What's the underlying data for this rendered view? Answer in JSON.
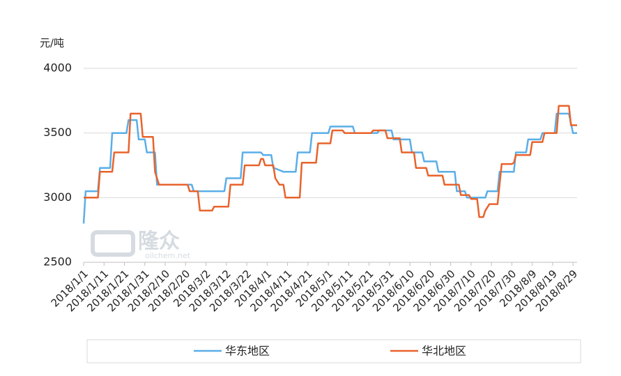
{
  "chart_data": {
    "type": "line",
    "y_label": "元/吨",
    "watermark": {
      "brand": "隆众",
      "site": "oilchem.net"
    },
    "xlim": [
      "2018/1/1",
      "2018/8/31"
    ],
    "xticks": [
      "2018/1/1",
      "2018/1/11",
      "2018/1/21",
      "2018/1/31",
      "2018/2/10",
      "2018/2/20",
      "2018/3/2",
      "2018/3/12",
      "2018/3/22",
      "2018/4/1",
      "2018/4/11",
      "2018/4/21",
      "2018/5/1",
      "2018/5/11",
      "2018/5/21",
      "2018/5/31",
      "2018/6/10",
      "2018/6/20",
      "2018/6/30",
      "2018/7/10",
      "2018/7/20",
      "2018/7/30",
      "2018/8/9",
      "2018/8/19",
      "2018/8/29"
    ],
    "ylim": [
      2500,
      4000
    ],
    "yticks": [
      2500,
      3000,
      3500,
      4000
    ],
    "grid": true,
    "series": [
      {
        "name": "华东地区",
        "color": "#5aaee8",
        "x": [
          "2018/1/1",
          "2018/1/2",
          "2018/1/8",
          "2018/1/9",
          "2018/1/14",
          "2018/1/15",
          "2018/1/22",
          "2018/1/23",
          "2018/1/27",
          "2018/1/28",
          "2018/1/31",
          "2018/2/1",
          "2018/2/5",
          "2018/2/6",
          "2018/2/23",
          "2018/2/24",
          "2018/3/11",
          "2018/3/12",
          "2018/3/19",
          "2018/3/20",
          "2018/3/29",
          "2018/3/30",
          "2018/4/3",
          "2018/4/4",
          "2018/4/6",
          "2018/4/9",
          "2018/4/15",
          "2018/4/16",
          "2018/4/22",
          "2018/4/23",
          "2018/5/1",
          "2018/5/2",
          "2018/5/13",
          "2018/5/14",
          "2018/5/25",
          "2018/5/26",
          "2018/6/1",
          "2018/6/2",
          "2018/6/10",
          "2018/6/11",
          "2018/6/16",
          "2018/6/17",
          "2018/6/23",
          "2018/6/24",
          "2018/7/2",
          "2018/7/3",
          "2018/7/7",
          "2018/7/8",
          "2018/7/17",
          "2018/7/18",
          "2018/7/23",
          "2018/7/24",
          "2018/7/31",
          "2018/8/1",
          "2018/8/6",
          "2018/8/7",
          "2018/8/13",
          "2018/8/14",
          "2018/8/20",
          "2018/8/21",
          "2018/8/27",
          "2018/8/29",
          "2018/8/31"
        ],
        "values": [
          2800,
          3050,
          3050,
          3230,
          3230,
          3500,
          3500,
          3600,
          3600,
          3450,
          3450,
          3350,
          3350,
          3100,
          3100,
          3050,
          3050,
          3150,
          3150,
          3350,
          3350,
          3330,
          3330,
          3230,
          3220,
          3200,
          3200,
          3350,
          3350,
          3500,
          3500,
          3550,
          3550,
          3500,
          3500,
          3520,
          3520,
          3450,
          3450,
          3350,
          3350,
          3280,
          3280,
          3200,
          3200,
          3050,
          3050,
          3000,
          3000,
          3050,
          3050,
          3200,
          3200,
          3350,
          3350,
          3450,
          3450,
          3500,
          3500,
          3650,
          3650,
          3500,
          3500
        ]
      },
      {
        "name": "华北地区",
        "color": "#e8632c",
        "x": [
          "2018/1/1",
          "2018/1/8",
          "2018/1/9",
          "2018/1/15",
          "2018/1/16",
          "2018/1/23",
          "2018/1/24",
          "2018/1/29",
          "2018/1/30",
          "2018/2/4",
          "2018/2/5",
          "2018/2/7",
          "2018/2/21",
          "2018/2/22",
          "2018/2/26",
          "2018/2/27",
          "2018/3/5",
          "2018/3/6",
          "2018/3/13",
          "2018/3/14",
          "2018/3/20",
          "2018/3/21",
          "2018/3/28",
          "2018/3/29",
          "2018/3/30",
          "2018/3/31",
          "2018/4/4",
          "2018/4/5",
          "2018/4/7",
          "2018/4/9",
          "2018/4/10",
          "2018/4/17",
          "2018/4/18",
          "2018/4/25",
          "2018/4/26",
          "2018/5/2",
          "2018/5/3",
          "2018/5/8",
          "2018/5/9",
          "2018/5/22",
          "2018/5/23",
          "2018/5/29",
          "2018/5/30",
          "2018/6/5",
          "2018/6/6",
          "2018/6/12",
          "2018/6/13",
          "2018/6/18",
          "2018/6/19",
          "2018/6/26",
          "2018/6/27",
          "2018/7/4",
          "2018/7/5",
          "2018/7/9",
          "2018/7/10",
          "2018/7/13",
          "2018/7/14",
          "2018/7/16",
          "2018/7/17",
          "2018/7/19",
          "2018/7/23",
          "2018/7/25",
          "2018/7/30",
          "2018/7/31",
          "2018/8/1",
          "2018/8/8",
          "2018/8/9",
          "2018/8/14",
          "2018/8/15",
          "2018/8/21",
          "2018/8/22",
          "2018/8/27",
          "2018/8/28",
          "2018/8/31"
        ],
        "values": [
          3000,
          3000,
          3200,
          3200,
          3350,
          3350,
          3650,
          3650,
          3470,
          3470,
          3200,
          3100,
          3100,
          3050,
          3050,
          2900,
          2900,
          2930,
          2930,
          3100,
          3100,
          3250,
          3250,
          3300,
          3300,
          3250,
          3250,
          3150,
          3100,
          3100,
          3000,
          3000,
          3270,
          3270,
          3420,
          3420,
          3520,
          3520,
          3500,
          3500,
          3520,
          3520,
          3460,
          3460,
          3350,
          3350,
          3230,
          3230,
          3170,
          3170,
          3100,
          3100,
          3020,
          3020,
          2990,
          2990,
          2850,
          2850,
          2900,
          2950,
          2950,
          3260,
          3260,
          3270,
          3330,
          3330,
          3430,
          3430,
          3500,
          3500,
          3710,
          3710,
          3560,
          3560
        ]
      }
    ]
  }
}
